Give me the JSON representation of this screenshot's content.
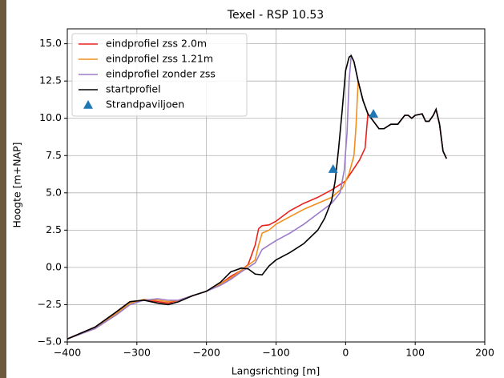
{
  "chart_data": {
    "type": "line",
    "title": "Texel - RSP 10.53",
    "x_label": "Langsrichting [m]",
    "y_label": "Hoogte [m+NAP]",
    "xlim": [
      -400,
      200
    ],
    "ylim": [
      -5,
      16
    ],
    "xticks": [
      {
        "value": -400,
        "label": "−400"
      },
      {
        "value": -300,
        "label": "−300"
      },
      {
        "value": -200,
        "label": "−200"
      },
      {
        "value": -100,
        "label": "−100"
      },
      0,
      100,
      200
    ],
    "yticks": [
      {
        "value": -5,
        "label": "−5.0"
      },
      {
        "value": -2.5,
        "label": "−2.5"
      },
      {
        "value": 0,
        "label": "0.0"
      },
      {
        "value": 2.5,
        "label": "2.5"
      },
      {
        "value": 5,
        "label": "5.0"
      },
      {
        "value": 7.5,
        "label": "7.5"
      },
      {
        "value": 10,
        "label": "10.0"
      },
      {
        "value": 12.5,
        "label": "12.5"
      },
      {
        "value": 15,
        "label": "15.0"
      }
    ],
    "grid": true,
    "legend": "upper left",
    "series": [
      {
        "name": "eindprofiel zss 2.0m",
        "color": "#e8231d",
        "type": "line",
        "x": [
          -400,
          -360,
          -330,
          -310,
          -290,
          -270,
          -255,
          -240,
          -220,
          -200,
          -180,
          -165,
          -150,
          -140,
          -130,
          -125,
          -120,
          -110,
          -100,
          -80,
          -60,
          -40,
          -20,
          0,
          10,
          20,
          28,
          32,
          40,
          48,
          55,
          65,
          75,
          85,
          90,
          95,
          100,
          110,
          115,
          120,
          126,
          130,
          135,
          140,
          145
        ],
        "values": [
          -4.8,
          -4.0,
          -3.0,
          -2.3,
          -2.2,
          -2.3,
          -2.4,
          -2.2,
          -1.9,
          -1.6,
          -1.1,
          -0.6,
          -0.2,
          0.2,
          1.5,
          2.6,
          2.8,
          2.85,
          3.1,
          3.8,
          4.3,
          4.7,
          5.2,
          5.8,
          6.5,
          7.2,
          8.0,
          10.3,
          9.8,
          9.3,
          9.3,
          9.6,
          9.6,
          10.2,
          10.2,
          10.0,
          10.2,
          10.3,
          9.8,
          9.8,
          10.2,
          10.6,
          9.6,
          7.8,
          7.3
        ]
      },
      {
        "name": "eindprofiel zss 1.21m",
        "color": "#f28e1c",
        "type": "line",
        "x": [
          -400,
          -360,
          -330,
          -310,
          -290,
          -270,
          -255,
          -240,
          -220,
          -200,
          -180,
          -165,
          -150,
          -130,
          -125,
          -120,
          -110,
          -100,
          -80,
          -60,
          -40,
          -20,
          -5,
          5,
          12,
          15,
          18,
          25,
          32,
          40,
          48,
          55,
          65,
          75,
          85,
          90,
          95,
          100,
          110,
          115,
          120,
          126,
          130,
          135,
          140,
          145
        ],
        "values": [
          -4.8,
          -4.1,
          -3.1,
          -2.4,
          -2.15,
          -2.2,
          -2.3,
          -2.2,
          -1.9,
          -1.6,
          -1.1,
          -0.7,
          -0.2,
          0.5,
          1.5,
          2.3,
          2.5,
          2.9,
          3.4,
          3.9,
          4.3,
          4.7,
          5.3,
          6.3,
          7.5,
          9.5,
          12.5,
          11.2,
          10.3,
          9.8,
          9.3,
          9.3,
          9.6,
          9.6,
          10.2,
          10.2,
          10.0,
          10.2,
          10.3,
          9.8,
          9.8,
          10.2,
          10.6,
          9.6,
          7.8,
          7.3
        ]
      },
      {
        "name": "eindprofiel zonder zss",
        "color": "#9b7bc8",
        "type": "line",
        "x": [
          -400,
          -360,
          -330,
          -310,
          -290,
          -270,
          -255,
          -240,
          -220,
          -200,
          -180,
          -165,
          -150,
          -130,
          -120,
          -110,
          -100,
          -80,
          -60,
          -40,
          -20,
          -8,
          -2,
          2,
          5,
          8,
          12,
          18,
          25,
          32,
          40,
          48,
          55,
          65,
          75,
          85,
          90,
          95,
          100,
          110,
          115,
          120,
          126,
          130,
          135,
          140,
          145
        ],
        "values": [
          -4.8,
          -4.1,
          -3.2,
          -2.5,
          -2.2,
          -2.1,
          -2.2,
          -2.2,
          -1.9,
          -1.6,
          -1.2,
          -0.8,
          -0.3,
          0.3,
          1.2,
          1.5,
          1.8,
          2.3,
          2.9,
          3.6,
          4.3,
          5.0,
          6.5,
          9.0,
          12.5,
          14.2,
          13.8,
          12.5,
          11.2,
          10.3,
          9.8,
          9.3,
          9.3,
          9.6,
          9.6,
          10.2,
          10.2,
          10.0,
          10.2,
          10.3,
          9.8,
          9.8,
          10.2,
          10.6,
          9.6,
          7.8,
          7.3
        ]
      },
      {
        "name": "startprofiel",
        "color": "#000000",
        "type": "line",
        "x": [
          -400,
          -360,
          -330,
          -310,
          -290,
          -270,
          -255,
          -240,
          -220,
          -200,
          -180,
          -165,
          -150,
          -140,
          -130,
          -120,
          -110,
          -100,
          -80,
          -60,
          -40,
          -30,
          -20,
          -15,
          -10,
          -5,
          0,
          5,
          8,
          12,
          18,
          25,
          32,
          40,
          48,
          55,
          65,
          75,
          85,
          90,
          95,
          100,
          110,
          115,
          120,
          126,
          130,
          135,
          140,
          145
        ],
        "values": [
          -4.8,
          -4.0,
          -3.0,
          -2.3,
          -2.2,
          -2.4,
          -2.5,
          -2.3,
          -1.9,
          -1.6,
          -1.0,
          -0.3,
          -0.05,
          -0.1,
          -0.45,
          -0.5,
          0.1,
          0.5,
          1.0,
          1.6,
          2.5,
          3.3,
          4.5,
          5.8,
          8.0,
          10.5,
          13.2,
          14.1,
          14.2,
          13.8,
          12.5,
          11.2,
          10.3,
          9.8,
          9.3,
          9.3,
          9.6,
          9.6,
          10.2,
          10.2,
          10.0,
          10.2,
          10.3,
          9.8,
          9.8,
          10.2,
          10.6,
          9.6,
          7.8,
          7.3
        ]
      },
      {
        "name": "Strandpaviljoen",
        "color": "#1f77b4",
        "type": "scatter",
        "x": [
          -18,
          40
        ],
        "values": [
          6.6,
          10.3
        ]
      }
    ]
  }
}
